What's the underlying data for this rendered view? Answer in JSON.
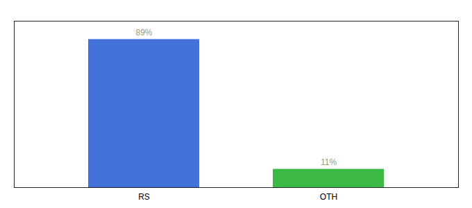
{
  "chart_data": {
    "type": "bar",
    "categories": [
      "RS",
      "OTH"
    ],
    "values": [
      89,
      11
    ],
    "value_labels": [
      "89%",
      "11%"
    ],
    "colors": [
      "#4472db",
      "#3cb844"
    ],
    "ylim": [
      0,
      100
    ],
    "data_labels": true,
    "tick_labels": "x"
  }
}
